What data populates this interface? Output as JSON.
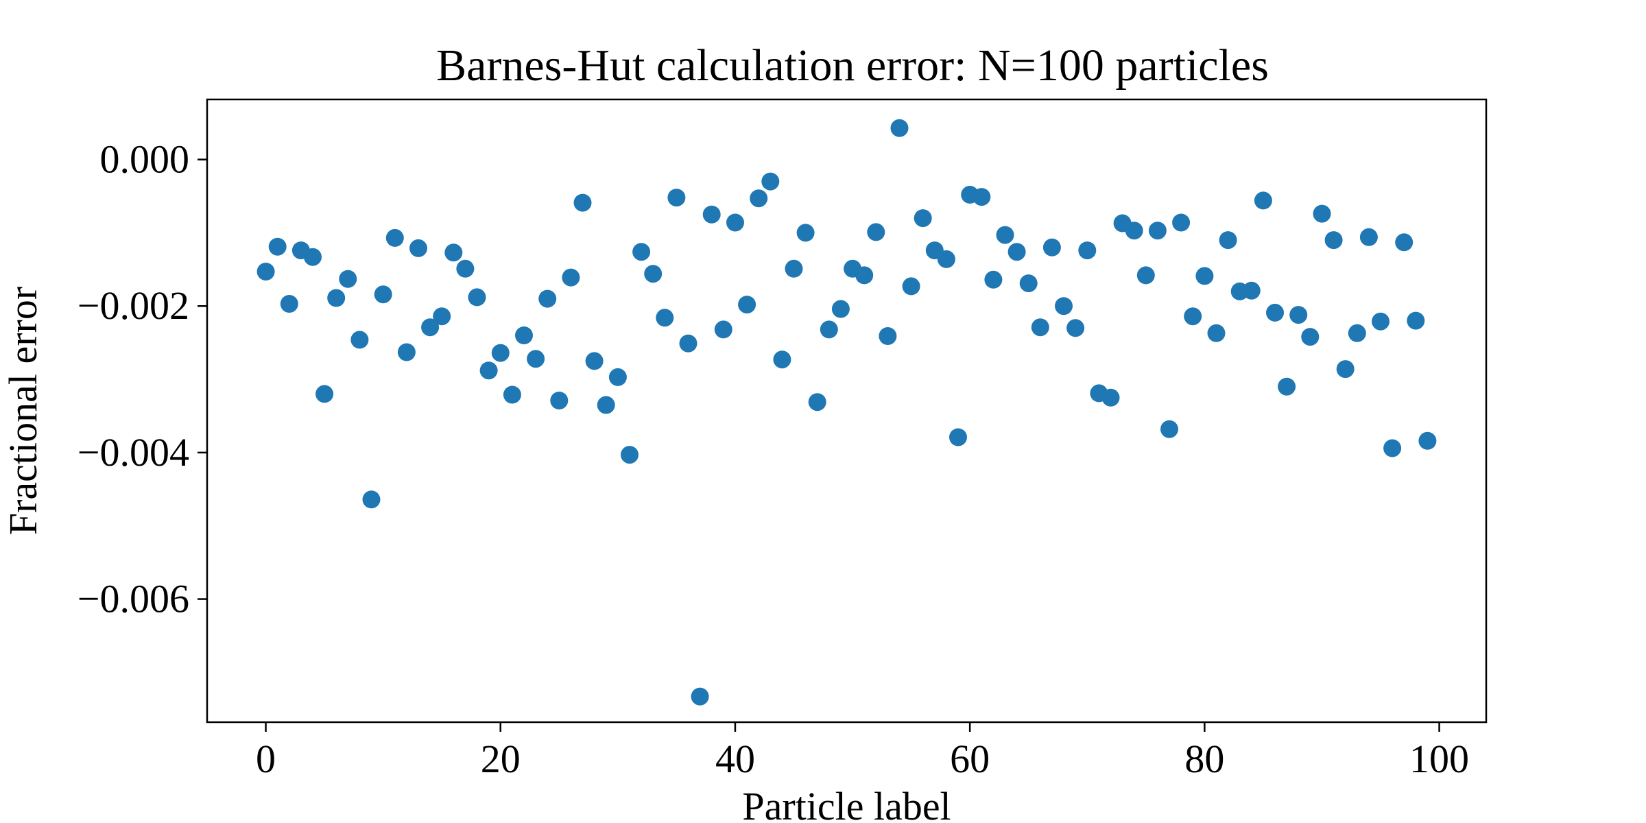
{
  "chart_data": {
    "type": "scatter",
    "title": "Barnes-Hut calculation error: N=100 particles",
    "xlabel": "Particle label",
    "ylabel": "Fractional error",
    "xlim": [
      -5,
      104
    ],
    "ylim": [
      -0.00768,
      0.00082
    ],
    "xticks": [
      0,
      20,
      40,
      60,
      80,
      100
    ],
    "xtick_labels": [
      "0",
      "20",
      "40",
      "60",
      "80",
      "100"
    ],
    "yticks": [
      0.0,
      -0.002,
      -0.004,
      -0.006
    ],
    "ytick_labels": [
      "0.000",
      "−0.002",
      "−0.004",
      "−0.006"
    ],
    "grid": false,
    "marker_color": "#1f77b4",
    "series": [
      {
        "x": [
          0,
          1,
          2,
          3,
          4,
          5,
          6,
          7,
          8,
          9,
          10,
          11,
          12,
          13,
          14,
          15,
          16,
          17,
          18,
          19,
          20,
          21,
          22,
          23,
          24,
          25,
          26,
          27,
          28,
          29,
          30,
          31,
          32,
          33,
          34,
          35,
          36,
          37,
          38,
          39,
          40,
          41,
          42,
          43,
          44,
          45,
          46,
          47,
          48,
          49,
          50,
          51,
          52,
          53,
          54,
          55,
          56,
          57,
          58,
          59,
          60,
          61,
          62,
          63,
          64,
          65,
          66,
          67,
          68,
          69,
          70,
          71,
          72,
          73,
          74,
          75,
          76,
          77,
          78,
          79,
          80,
          81,
          82,
          83,
          84,
          85,
          86,
          87,
          88,
          89,
          90,
          91,
          92,
          93,
          94,
          95,
          96,
          97,
          98,
          99
        ],
        "y": [
          -0.00153,
          -0.00119,
          -0.00197,
          -0.00124,
          -0.00133,
          -0.0032,
          -0.00189,
          -0.00163,
          -0.00246,
          -0.00464,
          -0.00184,
          -0.00107,
          -0.00263,
          -0.00121,
          -0.00229,
          -0.00214,
          -0.00127,
          -0.00149,
          -0.00188,
          -0.00288,
          -0.00264,
          -0.00321,
          -0.0024,
          -0.00272,
          -0.0019,
          -0.00329,
          -0.00161,
          -0.00059,
          -0.00275,
          -0.00335,
          -0.00297,
          -0.00403,
          -0.00126,
          -0.00156,
          -0.00216,
          -0.00052,
          -0.00251,
          -0.00733,
          -0.00075,
          -0.00232,
          -0.00086,
          -0.00198,
          -0.00053,
          -0.0003,
          -0.00273,
          -0.00149,
          -0.001,
          -0.00331,
          -0.00232,
          -0.00204,
          -0.00149,
          -0.00158,
          -0.00099,
          -0.00241,
          0.00043,
          -0.00173,
          -0.0008,
          -0.00124,
          -0.00136,
          -0.00379,
          -0.00048,
          -0.00051,
          -0.00164,
          -0.00103,
          -0.00126,
          -0.00169,
          -0.00229,
          -0.0012,
          -0.002,
          -0.0023,
          -0.00124,
          -0.00319,
          -0.00325,
          -0.00087,
          -0.00097,
          -0.00158,
          -0.00097,
          -0.00368,
          -0.00086,
          -0.00214,
          -0.00159,
          -0.00237,
          -0.0011,
          -0.0018,
          -0.00179,
          -0.00056,
          -0.00209,
          -0.0031,
          -0.00212,
          -0.00242,
          -0.00074,
          -0.0011,
          -0.00286,
          -0.00237,
          -0.00106,
          -0.00221,
          -0.00394,
          -0.00113,
          -0.0022,
          -0.00384
        ]
      }
    ]
  }
}
